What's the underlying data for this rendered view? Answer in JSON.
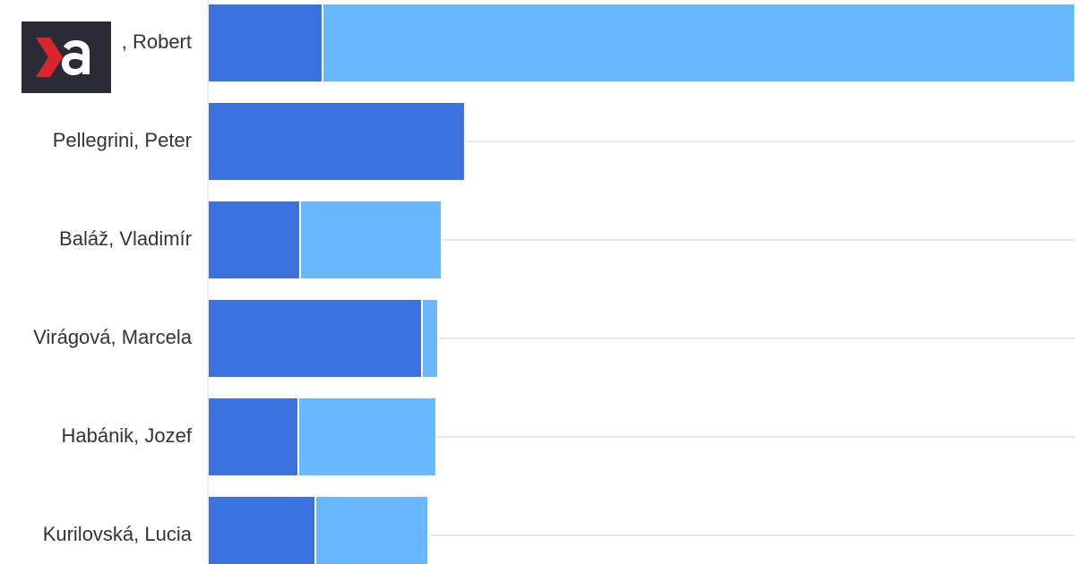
{
  "chart_data": {
    "type": "stacked-bar-horizontal",
    "categories": [
      ", Robert",
      "Pellegrini, Peter",
      "Baláž, Vladimír",
      "Virágová, Marcela",
      "Habánik, Jozef",
      "Kurilovská, Lucia"
    ],
    "series": [
      {
        "color": "#3a73de",
        "values": [
          128,
          287,
          103,
          239,
          101,
          120
        ]
      },
      {
        "color": "#69b8ff",
        "values": [
          840,
          0,
          158,
          18,
          154,
          126
        ]
      }
    ],
    "xlim": [
      0,
      968
    ],
    "grid": true
  }
}
